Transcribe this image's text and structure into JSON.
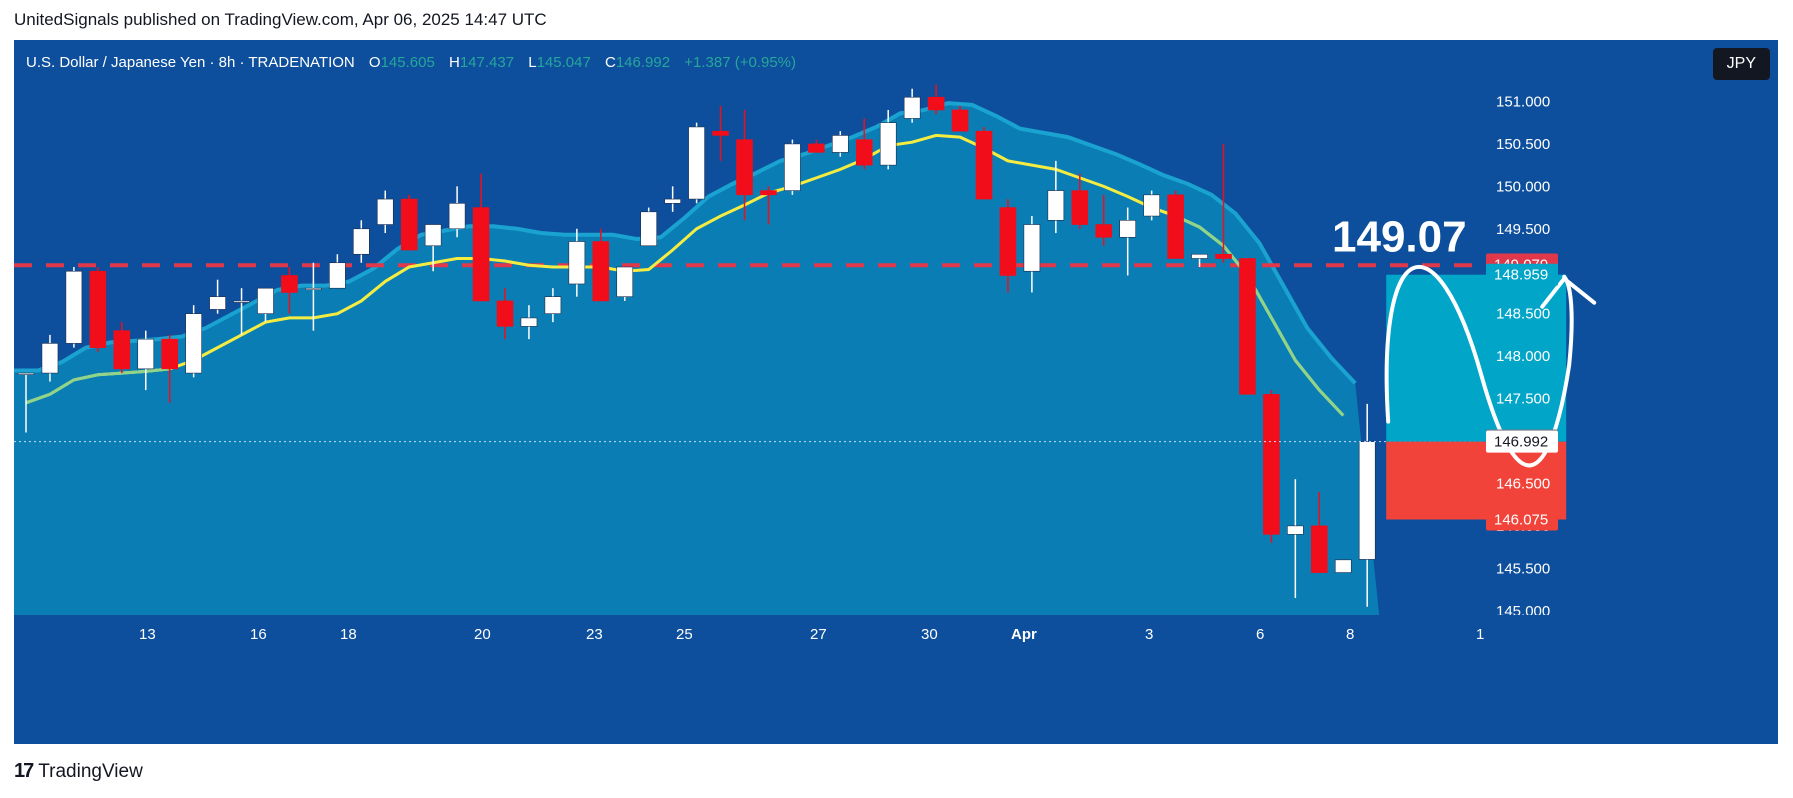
{
  "header": {
    "published": "UnitedSignals published on TradingView.com, Apr 06, 2025 14:47 UTC"
  },
  "legend": {
    "symbol": "U.S. Dollar / Japanese Yen · 8h · TRADENATION",
    "open_label": "O",
    "open": "145.605",
    "high_label": "H",
    "high": "147.437",
    "low_label": "L",
    "low": "145.047",
    "close_label": "C",
    "close": "146.992",
    "change": "+1.387 (+0.95%)"
  },
  "currency_button": "JPY",
  "footer": {
    "brand": "TradingView",
    "logo": "17"
  },
  "colors": {
    "background": "#0d4f9c",
    "area": "#0a86b8",
    "bull": "#ffffff",
    "bear": "#f20d1a",
    "ma_fast": "#f5ec42",
    "ma_slow": "#8fd48a",
    "level": "#e0384a",
    "target_zone": "#00a5c8",
    "stop_zone": "#f2433a"
  },
  "chart_data": {
    "type": "candlestick",
    "ylim": [
      144.95,
      151.3
    ],
    "y_ticks": [
      "151.000",
      "150.500",
      "150.000",
      "149.500",
      "149.000",
      "148.500",
      "148.000",
      "147.500",
      "147.000",
      "146.500",
      "146.000",
      "145.500",
      "145.000"
    ],
    "x_ticks": [
      "13",
      "16",
      "18",
      "20",
      "23",
      "25",
      "27",
      "30",
      "Apr",
      "3",
      "6",
      "8",
      "1"
    ],
    "candles": [
      [
        147.8,
        147.8,
        147.1,
        147.8
      ],
      [
        147.8,
        148.25,
        147.7,
        148.15
      ],
      [
        148.15,
        149.05,
        148.1,
        149.0
      ],
      [
        149.0,
        149.05,
        148.05,
        148.1
      ],
      [
        148.3,
        148.4,
        147.8,
        147.85
      ],
      [
        147.85,
        148.3,
        147.6,
        148.2
      ],
      [
        148.2,
        148.25,
        147.45,
        147.85
      ],
      [
        147.8,
        148.6,
        147.75,
        148.5
      ],
      [
        148.55,
        148.9,
        148.5,
        148.7
      ],
      [
        148.65,
        148.8,
        148.25,
        148.65
      ],
      [
        148.5,
        148.8,
        148.4,
        148.8
      ],
      [
        148.95,
        149.05,
        148.5,
        148.75
      ],
      [
        148.8,
        149.1,
        148.3,
        148.8
      ],
      [
        148.8,
        149.2,
        148.8,
        149.1
      ],
      [
        149.2,
        149.6,
        149.1,
        149.5
      ],
      [
        149.55,
        149.95,
        149.45,
        149.85
      ],
      [
        149.85,
        149.9,
        149.25,
        149.25
      ],
      [
        149.3,
        149.55,
        149.0,
        149.55
      ],
      [
        149.5,
        150.0,
        149.4,
        149.8
      ],
      [
        149.75,
        150.15,
        148.65,
        148.65
      ],
      [
        148.65,
        148.8,
        148.2,
        148.35
      ],
      [
        148.35,
        148.6,
        148.2,
        148.45
      ],
      [
        148.5,
        148.8,
        148.4,
        148.7
      ],
      [
        148.85,
        149.5,
        148.7,
        149.35
      ],
      [
        149.35,
        149.5,
        148.65,
        148.65
      ],
      [
        148.7,
        149.05,
        148.65,
        149.05
      ],
      [
        149.3,
        149.75,
        149.3,
        149.7
      ],
      [
        149.8,
        150.0,
        149.7,
        149.85
      ],
      [
        149.85,
        150.75,
        149.8,
        150.7
      ],
      [
        150.65,
        150.95,
        150.3,
        150.6
      ],
      [
        150.55,
        150.9,
        149.6,
        149.9
      ],
      [
        149.95,
        150.0,
        149.55,
        149.9
      ],
      [
        149.95,
        150.55,
        149.9,
        150.5
      ],
      [
        150.5,
        150.55,
        150.4,
        150.4
      ],
      [
        150.4,
        150.65,
        150.35,
        150.6
      ],
      [
        150.55,
        150.8,
        150.2,
        150.25
      ],
      [
        150.25,
        150.9,
        150.2,
        150.75
      ],
      [
        150.8,
        151.15,
        150.75,
        151.05
      ],
      [
        151.05,
        151.2,
        150.85,
        150.9
      ],
      [
        150.9,
        150.95,
        150.65,
        150.65
      ],
      [
        150.65,
        150.7,
        149.85,
        149.85
      ],
      [
        149.75,
        149.85,
        148.75,
        148.95
      ],
      [
        149.0,
        149.65,
        148.75,
        149.55
      ],
      [
        149.6,
        150.3,
        149.45,
        149.95
      ],
      [
        149.95,
        150.15,
        149.5,
        149.55
      ],
      [
        149.55,
        149.9,
        149.3,
        149.4
      ],
      [
        149.4,
        149.75,
        148.95,
        149.6
      ],
      [
        149.65,
        149.95,
        149.6,
        149.9
      ],
      [
        149.9,
        149.95,
        149.15,
        149.15
      ],
      [
        149.15,
        149.2,
        149.05,
        149.2
      ],
      [
        149.2,
        150.5,
        149.1,
        149.15
      ],
      [
        149.15,
        149.15,
        147.55,
        147.55
      ],
      [
        147.55,
        147.6,
        145.8,
        145.9
      ],
      [
        145.9,
        146.55,
        145.15,
        146.0
      ],
      [
        146.0,
        146.4,
        145.45,
        145.45
      ],
      [
        145.45,
        145.6,
        145.45,
        145.6
      ],
      [
        145.605,
        147.437,
        145.047,
        146.992
      ]
    ],
    "ma_fast": [
      147.45,
      147.55,
      147.72,
      147.78,
      147.8,
      147.82,
      147.85,
      147.95,
      148.1,
      148.25,
      148.4,
      148.45,
      148.45,
      148.5,
      148.65,
      148.88,
      149.05,
      149.1,
      149.15,
      149.15,
      149.12,
      149.07,
      149.05,
      149.05,
      149.05,
      149.0,
      149.02,
      149.25,
      149.5,
      149.65,
      149.78,
      149.92,
      150.0,
      150.1,
      150.2,
      150.32,
      150.48,
      150.52,
      150.6,
      150.58,
      150.45,
      150.3,
      150.25,
      150.2,
      150.1,
      150.0,
      149.88,
      149.75,
      149.65,
      149.52,
      149.3,
      148.95,
      148.45,
      147.95,
      147.6,
      147.3
    ],
    "level_price": 149.07,
    "level_label": "149.07",
    "price_tags": [
      {
        "label": "149.079",
        "price": 149.079,
        "color": "#e0384a"
      },
      {
        "label": "148.959",
        "price": 148.959,
        "color": "#00a5c8"
      },
      {
        "label": "147.006",
        "price": 147.006,
        "color": "#787b86"
      },
      {
        "label": "146.992",
        "price": 146.992,
        "color": "#ffffff"
      },
      {
        "label": "146.075",
        "price": 146.075,
        "color": "#f2433a"
      }
    ],
    "position": {
      "entry": 146.992,
      "target": 148.959,
      "stop": 146.075
    }
  }
}
